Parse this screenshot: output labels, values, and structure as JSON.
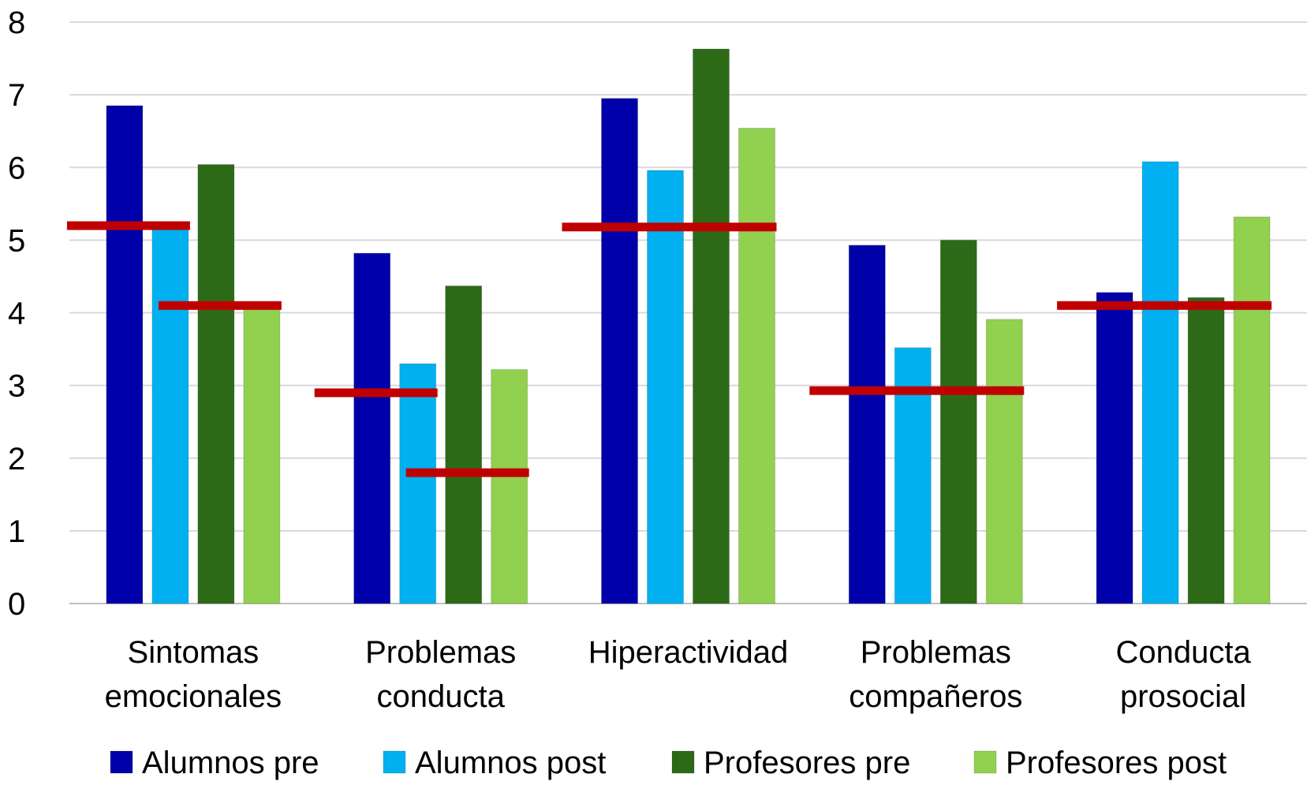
{
  "chart_data": {
    "type": "bar",
    "title": "",
    "xlabel": "",
    "ylabel": "",
    "ylim": [
      0,
      8
    ],
    "yticks": [
      "0",
      "1",
      "2",
      "3",
      "4",
      "5",
      "6",
      "7",
      "8"
    ],
    "grid": true,
    "legend_position": "bottom",
    "categories": [
      [
        "Sintomas",
        "emocionales"
      ],
      [
        "Problemas",
        "conducta"
      ],
      [
        "Hiperactividad"
      ],
      [
        "Problemas",
        "compañeros"
      ],
      [
        "Conducta",
        "prosocial"
      ]
    ],
    "series": [
      {
        "name": "Alumnos pre",
        "color": "#0000AA",
        "values": [
          6.85,
          4.82,
          6.95,
          4.93,
          4.28
        ]
      },
      {
        "name": "Alumnos post",
        "color": "#00B0F0",
        "values": [
          5.18,
          3.3,
          5.96,
          3.52,
          6.08
        ]
      },
      {
        "name": "Profesores pre",
        "color": "#2D6A18",
        "values": [
          6.04,
          4.37,
          7.63,
          5.0,
          4.21
        ]
      },
      {
        "name": "Profesores post",
        "color": "#92D050",
        "values": [
          4.1,
          3.22,
          6.54,
          3.91,
          5.32
        ]
      }
    ],
    "reference_lines": {
      "color": "#C00000",
      "lines": [
        {
          "category": 0,
          "from_series": 0,
          "to_series": 1,
          "value": 5.2
        },
        {
          "category": 0,
          "from_series": 2,
          "to_series": 3,
          "value": 4.1
        },
        {
          "category": 1,
          "from_series": 0,
          "to_series": 1,
          "value": 2.9
        },
        {
          "category": 1,
          "from_series": 2,
          "to_series": 3,
          "value": 1.8
        },
        {
          "category": 2,
          "from_series": 0,
          "to_series": 3,
          "value": 5.18
        },
        {
          "category": 3,
          "from_series": 0,
          "to_series": 3,
          "value": 2.93
        },
        {
          "category": 4,
          "from_series": 0,
          "to_series": 3,
          "value": 4.1
        }
      ]
    }
  }
}
